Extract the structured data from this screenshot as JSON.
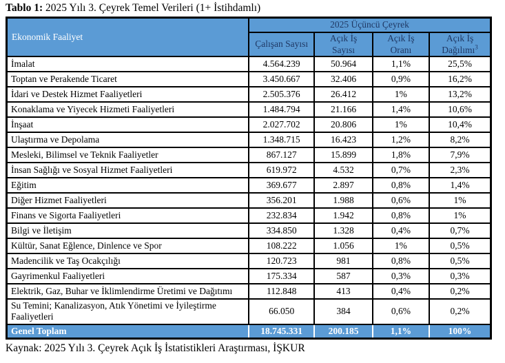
{
  "title": {
    "prefix": "Tablo 1:",
    "rest": " 2025 Yılı 3. Çeyrek Temel Verileri (1+ İstihdamlı)"
  },
  "colors": {
    "header_blue": "#5B9BD5",
    "header_text_navy": "#1F3864",
    "border_black": "#000000",
    "total_text_white": "#FFFFFF"
  },
  "table": {
    "row_header": "Ekonomik Faaliyet",
    "group_header": "2025 Üçüncü Çeyrek",
    "columns": [
      {
        "line1": "Çalışan Sayısı",
        "line2": "",
        "sup": ""
      },
      {
        "line1": "Açık İş",
        "line2": "Sayısı",
        "sup": ""
      },
      {
        "line1": "Açık İş",
        "line2": "Oranı",
        "sup": ""
      },
      {
        "line1": "Açık İş",
        "line2": "Dağılımı",
        "sup": "3"
      }
    ],
    "rows": [
      {
        "label": "İmalat",
        "calisan": "4.564.239",
        "acik": "50.964",
        "oran": "1,1%",
        "dagilim": "25,5%"
      },
      {
        "label": "Toptan ve Perakende Ticaret",
        "calisan": "3.450.667",
        "acik": "32.406",
        "oran": "0,9%",
        "dagilim": "16,2%"
      },
      {
        "label": "İdari ve Destek Hizmet Faaliyetleri",
        "calisan": "2.505.376",
        "acik": "26.412",
        "oran": "1%",
        "dagilim": "13,2%"
      },
      {
        "label": "Konaklama ve Yiyecek Hizmeti Faaliyetleri",
        "calisan": "1.484.794",
        "acik": "21.166",
        "oran": "1,4%",
        "dagilim": "10,6%"
      },
      {
        "label": "İnşaat",
        "calisan": "2.027.702",
        "acik": "20.806",
        "oran": "1%",
        "dagilim": "10,4%"
      },
      {
        "label": "Ulaştırma ve Depolama",
        "calisan": "1.348.715",
        "acik": "16.423",
        "oran": "1,2%",
        "dagilim": "8,2%"
      },
      {
        "label": "Mesleki, Bilimsel ve Teknik Faaliyetler",
        "calisan": "867.127",
        "acik": "15.899",
        "oran": "1,8%",
        "dagilim": "7,9%"
      },
      {
        "label": "İnsan Sağlığı ve Sosyal Hizmet Faaliyetleri",
        "calisan": "619.972",
        "acik": "4.532",
        "oran": "0,7%",
        "dagilim": "2,3%"
      },
      {
        "label": "Eğitim",
        "calisan": "369.677",
        "acik": "2.897",
        "oran": "0,8%",
        "dagilim": "1,4%"
      },
      {
        "label": "Diğer Hizmet Faaliyetleri",
        "calisan": "356.201",
        "acik": "1.988",
        "oran": "0,6%",
        "dagilim": "1%"
      },
      {
        "label": "Finans ve Sigorta Faaliyetleri",
        "calisan": "232.834",
        "acik": "1.942",
        "oran": "0,8%",
        "dagilim": "1%"
      },
      {
        "label": "Bilgi ve İletişim",
        "calisan": "334.850",
        "acik": "1.328",
        "oran": "0,4%",
        "dagilim": "0,7%"
      },
      {
        "label": "Kültür, Sanat Eğlence, Dinlence ve Spor",
        "calisan": "108.222",
        "acik": "1.056",
        "oran": "1%",
        "dagilim": "0,5%"
      },
      {
        "label": "Madencilik ve Taş Ocakçılığı",
        "calisan": "120.723",
        "acik": "981",
        "oran": "0,8%",
        "dagilim": "0,5%"
      },
      {
        "label": "Gayrimenkul Faaliyetleri",
        "calisan": "175.334",
        "acik": "587",
        "oran": "0,3%",
        "dagilim": "0,3%"
      },
      {
        "label": "Elektrik, Gaz, Buhar ve İklimlendirme Üretimi ve Dağıtımı",
        "calisan": "112.848",
        "acik": "413",
        "oran": "0,4%",
        "dagilim": "0,2%"
      },
      {
        "label": "Su Temini; Kanalizasyon, Atık Yönetimi ve İyileştirme Faaliyetleri",
        "calisan": "66.050",
        "acik": "384",
        "oran": "0,6%",
        "dagilim": "0,2%"
      }
    ],
    "total": {
      "label": "Genel Toplam",
      "calisan": "18.745.331",
      "acik": "200.185",
      "oran": "1,1%",
      "dagilim": "100%"
    }
  },
  "source": "Kaynak: 2025 Yılı 3. Çeyrek Açık İş İstatistikleri Araştırması, İŞKUR"
}
